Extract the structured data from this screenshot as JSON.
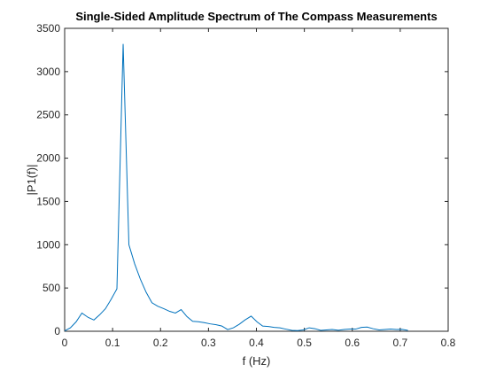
{
  "chart_data": {
    "type": "line",
    "title": "Single-Sided Amplitude Spectrum of The Compass Measurements",
    "xlabel": "f (Hz)",
    "ylabel": "|P1(f)|",
    "xlim": [
      0,
      0.8
    ],
    "ylim": [
      0,
      3500
    ],
    "xticks": [
      0,
      0.1,
      0.2,
      0.3,
      0.4,
      0.5,
      0.6,
      0.7,
      0.8
    ],
    "xtick_labels": [
      "0",
      "0.1",
      "0.2",
      "0.3",
      "0.4",
      "0.5",
      "0.6",
      "0.7",
      "0.8"
    ],
    "yticks": [
      0,
      500,
      1000,
      1500,
      2000,
      2500,
      3000,
      3500
    ],
    "ytick_labels": [
      "0",
      "500",
      "1000",
      "1500",
      "2000",
      "2500",
      "3000",
      "3500"
    ],
    "grid": false,
    "line_color": "#0072BD",
    "series": [
      {
        "x": [
          0,
          0.012,
          0.024,
          0.036,
          0.049,
          0.061,
          0.073,
          0.085,
          0.097,
          0.109,
          0.122,
          0.134,
          0.146,
          0.158,
          0.17,
          0.182,
          0.194,
          0.207,
          0.219,
          0.231,
          0.243,
          0.255,
          0.267,
          0.279,
          0.291,
          0.304,
          0.316,
          0.328,
          0.34,
          0.352,
          0.364,
          0.376,
          0.389,
          0.401,
          0.413,
          0.425,
          0.437,
          0.449,
          0.461,
          0.474,
          0.486,
          0.498,
          0.51,
          0.522,
          0.534,
          0.546,
          0.558,
          0.571,
          0.583,
          0.595,
          0.607,
          0.619,
          0.631,
          0.643,
          0.656,
          0.668,
          0.68,
          0.692,
          0.704,
          0.716
        ],
        "y": [
          5,
          40,
          110,
          210,
          160,
          130,
          190,
          260,
          370,
          490,
          3320,
          1000,
          780,
          600,
          450,
          330,
          290,
          260,
          230,
          210,
          250,
          170,
          115,
          110,
          100,
          85,
          75,
          60,
          20,
          40,
          80,
          130,
          175,
          110,
          60,
          55,
          45,
          40,
          25,
          10,
          8,
          15,
          40,
          30,
          10,
          15,
          20,
          12,
          20,
          25,
          25,
          45,
          48,
          30,
          15,
          20,
          25,
          20,
          22,
          10
        ]
      }
    ]
  }
}
